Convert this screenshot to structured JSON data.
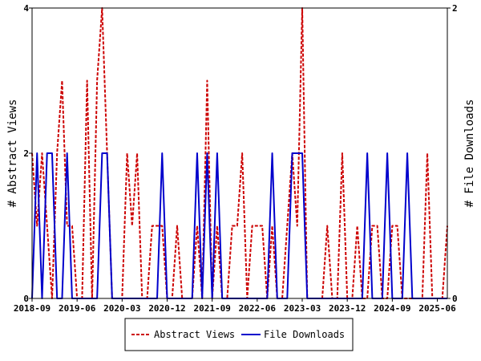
{
  "chart_data": {
    "type": "line",
    "title": "",
    "xlabel": "",
    "ylabel": "# Abstract Views",
    "y2label": "# File Downloads",
    "x_ticks": [
      "2018-09",
      "2019-06",
      "2020-03",
      "2020-12",
      "2021-09",
      "2022-06",
      "2023-03",
      "2023-12",
      "2024-09",
      "2025-06"
    ],
    "y_ticks": [
      "0",
      "2",
      "4"
    ],
    "y2_ticks": [
      "0",
      "2"
    ],
    "ylim": [
      0,
      4
    ],
    "y2lim": [
      0,
      2
    ],
    "grid": false,
    "legend_position": "bottom",
    "legend_entries": [
      "Abstract Views",
      "File Downloads"
    ],
    "series": [
      {
        "name": "Abstract Views",
        "axis": "left",
        "color": "#cc0000",
        "style": "dashed",
        "x": [
          "2018-09",
          "2018-10",
          "2018-11",
          "2018-12",
          "2019-01",
          "2019-02",
          "2019-03",
          "2019-04",
          "2019-05",
          "2019-06",
          "2019-07",
          "2019-08",
          "2019-09",
          "2019-10",
          "2019-11",
          "2019-12",
          "2020-01",
          "2020-02",
          "2020-03",
          "2020-04",
          "2020-05",
          "2020-06",
          "2020-07",
          "2020-08",
          "2020-09",
          "2020-10",
          "2020-11",
          "2020-12",
          "2021-01",
          "2021-02",
          "2021-03",
          "2021-04",
          "2021-05",
          "2021-06",
          "2021-07",
          "2021-08",
          "2021-09",
          "2021-10",
          "2021-11",
          "2021-12",
          "2022-01",
          "2022-02",
          "2022-03",
          "2022-04",
          "2022-05",
          "2022-06",
          "2022-07",
          "2022-08",
          "2022-09",
          "2022-10",
          "2022-11",
          "2022-12",
          "2023-01",
          "2023-02",
          "2023-03",
          "2023-04",
          "2023-05",
          "2023-06",
          "2023-07",
          "2023-08",
          "2023-09",
          "2023-10",
          "2023-11",
          "2023-12",
          "2024-01",
          "2024-02",
          "2024-03",
          "2024-04",
          "2024-05",
          "2024-06",
          "2024-07",
          "2024-08",
          "2024-09",
          "2024-10",
          "2024-11",
          "2024-12",
          "2025-01",
          "2025-02",
          "2025-03",
          "2025-04",
          "2025-05",
          "2025-06",
          "2025-07",
          "2025-08"
        ],
        "values": [
          2,
          1,
          2,
          1,
          0,
          2,
          3,
          1,
          1,
          0,
          0,
          3,
          0,
          3,
          4,
          2,
          0,
          0,
          0,
          2,
          1,
          2,
          0,
          0,
          1,
          1,
          1,
          0,
          0,
          1,
          0,
          0,
          0,
          1,
          0,
          3,
          0,
          1,
          0,
          0,
          1,
          1,
          2,
          0,
          1,
          1,
          1,
          0,
          1,
          0,
          0,
          1,
          2,
          1,
          4,
          0,
          0,
          0,
          0,
          1,
          0,
          0,
          2,
          0,
          0,
          1,
          0,
          0,
          1,
          1,
          0,
          0,
          1,
          1,
          0,
          0,
          0,
          0,
          0,
          2,
          0,
          0,
          0,
          1
        ]
      },
      {
        "name": "File Downloads",
        "axis": "right",
        "color": "#0000cc",
        "style": "solid",
        "x": [
          "2018-09",
          "2018-10",
          "2018-11",
          "2018-12",
          "2019-01",
          "2019-02",
          "2019-03",
          "2019-04",
          "2019-05",
          "2019-06",
          "2019-07",
          "2019-08",
          "2019-09",
          "2019-10",
          "2019-11",
          "2019-12",
          "2020-01",
          "2020-02",
          "2020-03",
          "2020-04",
          "2020-05",
          "2020-06",
          "2020-07",
          "2020-08",
          "2020-09",
          "2020-10",
          "2020-11",
          "2020-12",
          "2021-01",
          "2021-02",
          "2021-03",
          "2021-04",
          "2021-05",
          "2021-06",
          "2021-07",
          "2021-08",
          "2021-09",
          "2021-10",
          "2021-11",
          "2021-12",
          "2022-01",
          "2022-02",
          "2022-03",
          "2022-04",
          "2022-05",
          "2022-06",
          "2022-07",
          "2022-08",
          "2022-09",
          "2022-10",
          "2022-11",
          "2022-12",
          "2023-01",
          "2023-02",
          "2023-03",
          "2023-04",
          "2023-05",
          "2023-06",
          "2023-07",
          "2023-08",
          "2023-09",
          "2023-10",
          "2023-11",
          "2023-12",
          "2024-01",
          "2024-02",
          "2024-03",
          "2024-04",
          "2024-05",
          "2024-06",
          "2024-07",
          "2024-08",
          "2024-09",
          "2024-10",
          "2024-11",
          "2024-12",
          "2025-01",
          "2025-02",
          "2025-03",
          "2025-04",
          "2025-05",
          "2025-06",
          "2025-07",
          "2025-08"
        ],
        "values": [
          0,
          1,
          0,
          1,
          1,
          0,
          0,
          1,
          0,
          0,
          0,
          0,
          0,
          0,
          1,
          1,
          0,
          0,
          0,
          0,
          0,
          0,
          0,
          0,
          0,
          0,
          1,
          0,
          0,
          0,
          0,
          0,
          0,
          1,
          0,
          1,
          0,
          1,
          0,
          0,
          0,
          0,
          0,
          0,
          0,
          0,
          0,
          0,
          1,
          0,
          0,
          0,
          1,
          1,
          1,
          0,
          0,
          0,
          0,
          0,
          0,
          0,
          0,
          0,
          0,
          0,
          0,
          1,
          0,
          0,
          0,
          1,
          0,
          0,
          0,
          1,
          0,
          0,
          0,
          0,
          0,
          0,
          0,
          0
        ]
      }
    ]
  }
}
